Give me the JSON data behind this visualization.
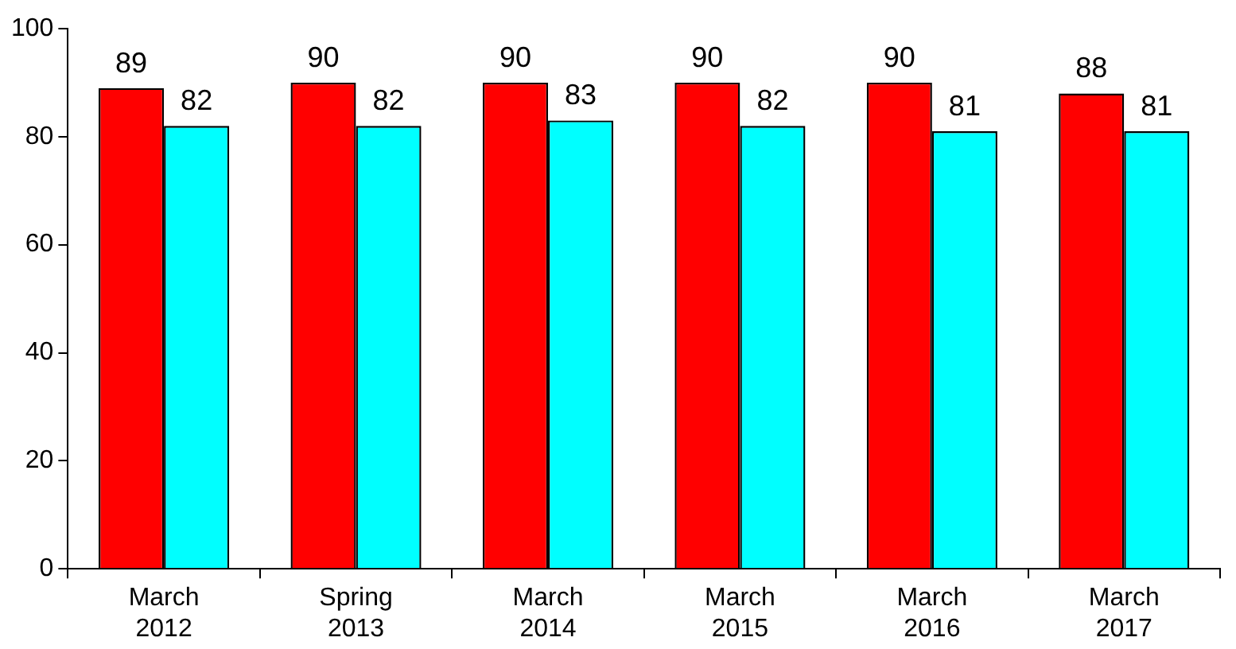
{
  "chart_data": {
    "type": "bar",
    "categories": [
      "March 2012",
      "Spring 2013",
      "March 2014",
      "March 2015",
      "March 2016",
      "March 2017"
    ],
    "series": [
      {
        "color": "#ff0000",
        "values": [
          89,
          90,
          90,
          90,
          90,
          88
        ]
      },
      {
        "color": "#00ffff",
        "values": [
          82,
          82,
          83,
          82,
          81,
          81
        ]
      }
    ],
    "ylim": [
      0,
      100
    ],
    "yticks": [
      0,
      20,
      40,
      60,
      80,
      100
    ],
    "grid": false,
    "legend": false,
    "data_labels": true
  }
}
